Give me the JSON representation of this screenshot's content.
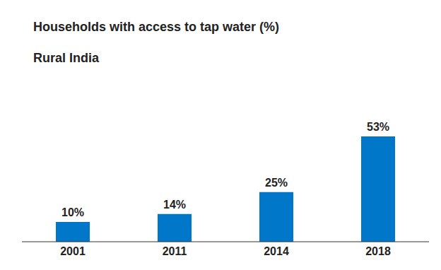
{
  "chart_data": {
    "type": "bar",
    "title": "Households with access to tap water (%)",
    "subtitle": "Rural India",
    "categories": [
      "2001",
      "2011",
      "2014",
      "2018"
    ],
    "values": [
      10,
      14,
      25,
      53
    ],
    "value_labels": [
      "10%",
      "14%",
      "25%",
      "53%"
    ],
    "color": "#0077c8",
    "data_labels": true,
    "tick_labels": "x",
    "grid": false
  }
}
